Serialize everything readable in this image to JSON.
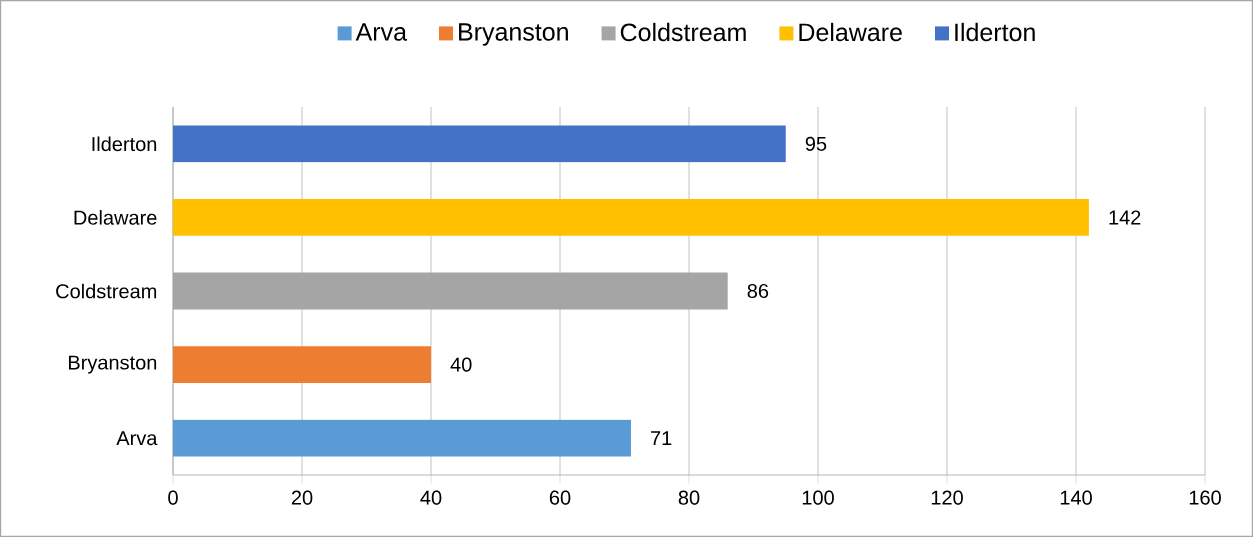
{
  "chart_data": {
    "type": "bar",
    "orientation": "horizontal",
    "categories": [
      "Ilderton",
      "Delaware",
      "Coldstream",
      "Bryanston",
      "Arva"
    ],
    "series": [
      {
        "name": "Arva",
        "color": "#5b9bd5",
        "values": [
          null,
          null,
          null,
          null,
          71
        ]
      },
      {
        "name": "Bryanston",
        "color": "#ed7d31",
        "values": [
          null,
          null,
          null,
          40,
          null
        ]
      },
      {
        "name": "Coldstream",
        "color": "#a5a5a5",
        "values": [
          null,
          null,
          86,
          null,
          null
        ]
      },
      {
        "name": "Delaware",
        "color": "#ffc000",
        "values": [
          null,
          142,
          null,
          null,
          null
        ]
      },
      {
        "name": "Ilderton",
        "color": "#4472c4",
        "values": [
          95,
          null,
          null,
          null,
          null
        ]
      }
    ],
    "xlim": [
      0,
      160
    ],
    "xticks": [
      0,
      20,
      40,
      60,
      80,
      100,
      120,
      140,
      160
    ],
    "grid": "x",
    "legend": "top",
    "data_labels": true
  }
}
